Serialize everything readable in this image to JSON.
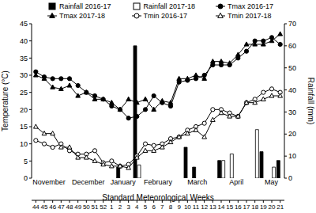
{
  "chart_data": {
    "type": "combo",
    "x_label": "Standard Meteorological Weeks",
    "y_label": "Temperature (°C)",
    "y2_label": "Rainfall (mm)",
    "categories": [
      "44",
      "45",
      "46",
      "47",
      "48",
      "49",
      "50",
      "51",
      "52",
      "1",
      "2",
      "3",
      "4",
      "5",
      "6",
      "7",
      "8",
      "9",
      "10",
      "11",
      "12",
      "13",
      "14",
      "15",
      "16",
      "17",
      "18",
      "19",
      "20",
      "21"
    ],
    "month_groups": [
      {
        "label": "November",
        "weeks": [
          "44",
          "45",
          "46",
          "47",
          "48"
        ]
      },
      {
        "label": "December",
        "weeks": [
          "49",
          "50",
          "51",
          "52"
        ]
      },
      {
        "label": "January",
        "weeks": [
          "1",
          "2",
          "3",
          "4"
        ]
      },
      {
        "label": "February",
        "weeks": [
          "5",
          "6",
          "7",
          "8"
        ]
      },
      {
        "label": "March",
        "weeks": [
          "9",
          "10",
          "11",
          "12",
          "13"
        ]
      },
      {
        "label": "April",
        "weeks": [
          "14",
          "15",
          "16",
          "17"
        ]
      },
      {
        "label": "May",
        "weeks": [
          "18",
          "19",
          "20",
          "21"
        ]
      }
    ],
    "ylim": [
      0,
      45
    ],
    "yticks": [
      0,
      5,
      10,
      15,
      20,
      25,
      30,
      35,
      40,
      45
    ],
    "y2lim": [
      0,
      70
    ],
    "y2ticks": [
      0,
      10,
      20,
      30,
      40,
      50,
      60,
      70
    ],
    "grid": false,
    "legend": "top",
    "series": [
      {
        "name": "Rainfall 2016-17",
        "type": "bar",
        "axis": "y2",
        "color": "#000000",
        "values": [
          0,
          0,
          0,
          0,
          0,
          0,
          0,
          0,
          0,
          0,
          5,
          0,
          60,
          0,
          0,
          0,
          0,
          0,
          14,
          5,
          0,
          0,
          8,
          0,
          0,
          0,
          0,
          12,
          0,
          8
        ]
      },
      {
        "name": "Rainfall 2017-18",
        "type": "bar",
        "axis": "y2",
        "color": "#ffffff",
        "values": [
          0,
          0,
          0,
          0,
          0,
          0,
          0,
          0,
          0,
          0,
          0,
          0,
          6,
          0,
          0,
          0,
          0,
          0,
          0,
          0,
          0,
          0,
          8,
          11,
          0,
          0,
          22,
          0,
          5,
          0
        ]
      },
      {
        "name": "Tmax 2016-17",
        "type": "line",
        "color": "#000000",
        "marker": "circle",
        "values": [
          31,
          29.5,
          29,
          29,
          29,
          27,
          25,
          24,
          23,
          21,
          20,
          17.5,
          18,
          20,
          24,
          22,
          21,
          28,
          28.5,
          29,
          30,
          33,
          33,
          33,
          35,
          37,
          40,
          40,
          41,
          39
        ]
      },
      {
        "name": "Tmax 2017-18",
        "type": "line",
        "color": "#000000",
        "marker": "triangle",
        "values": [
          30,
          29,
          26.5,
          26,
          27,
          24,
          25,
          23,
          23,
          22,
          20,
          23,
          22,
          23,
          20,
          22.5,
          22,
          29,
          29,
          30,
          29,
          34,
          34,
          33.5,
          36,
          39,
          39,
          39,
          40,
          42
        ]
      },
      {
        "name": "Tmin 2016-17",
        "type": "line",
        "color": "#000000",
        "marker": "open_circle",
        "values": [
          11,
          10,
          9,
          10,
          8,
          7,
          7,
          8,
          4.5,
          5,
          3.5,
          4,
          6.5,
          10,
          9.5,
          10,
          11.5,
          12,
          14,
          15,
          16,
          20,
          20,
          19,
          18,
          22,
          23,
          25,
          26,
          25
        ]
      },
      {
        "name": "Tmin 2017-18",
        "type": "line",
        "color": "#000000",
        "marker": "open_triangle",
        "values": [
          15,
          13,
          13,
          9,
          9,
          6,
          6,
          5,
          4,
          3.5,
          3.5,
          3,
          6,
          8,
          8,
          9,
          10.5,
          12,
          13,
          14,
          12,
          17,
          19,
          18,
          18,
          22,
          22,
          23,
          24,
          24
        ]
      }
    ]
  }
}
